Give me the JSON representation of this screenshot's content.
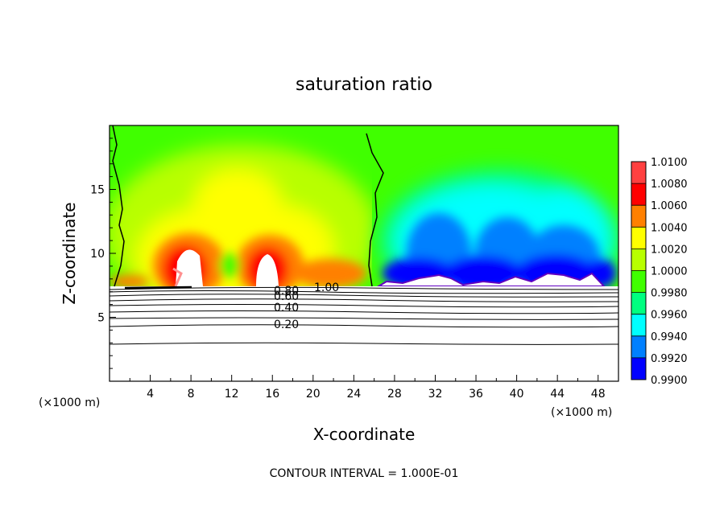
{
  "chart_data": {
    "type": "heatmap",
    "title": "saturation ratio",
    "xlabel": "X-coordinate",
    "ylabel": "Z-coordinate",
    "x_unit": "(×1000 m)",
    "z_unit": "(×1000 m)",
    "xlim": [
      0,
      50
    ],
    "ylim": [
      0,
      20
    ],
    "x_ticks": [
      "4",
      "8",
      "12",
      "16",
      "20",
      "24",
      "28",
      "32",
      "36",
      "40",
      "44",
      "48"
    ],
    "y_ticks": [
      "5",
      "10",
      "15"
    ],
    "colorbar": {
      "levels": [
        "1.0100",
        "1.0080",
        "1.0060",
        "1.0040",
        "1.0020",
        "1.0000",
        "0.9980",
        "0.9960",
        "0.9940",
        "0.9920",
        "0.9900"
      ],
      "colors": [
        "#ff4040",
        "#ff0000",
        "#ff8000",
        "#ffff00",
        "#b8ff00",
        "#40ff00",
        "#00ff80",
        "#00ffff",
        "#0080ff",
        "#0000ff",
        "#6000c0"
      ],
      "range": [
        0.99,
        1.01
      ]
    },
    "contour_labels": [
      "0.20",
      "0.40",
      "0.60",
      "0.80",
      "1.00"
    ],
    "contour_interval_text": "CONTOUR INTERVAL = 1.000E-01",
    "cloud_base_km": 7.3,
    "supersaturated_region_x_km": [
      0,
      26
    ],
    "subsaturated_region_x_km": [
      26,
      50
    ],
    "grid": false,
    "legend": "right"
  }
}
